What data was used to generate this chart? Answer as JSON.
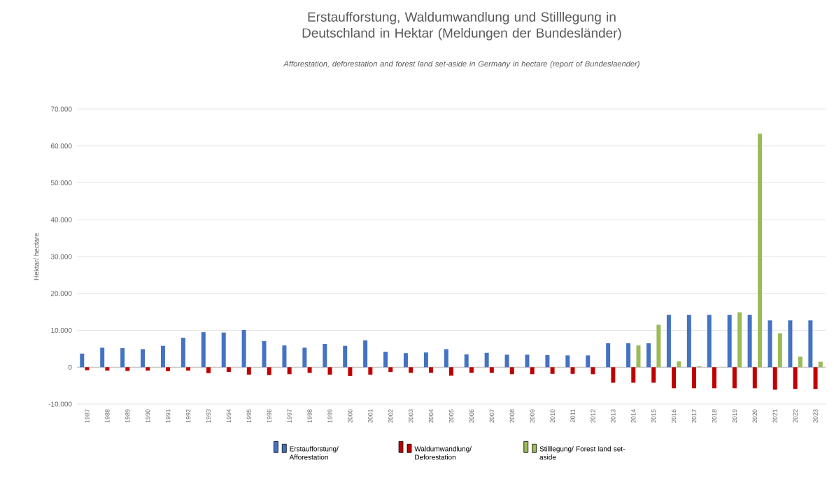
{
  "chart_data": {
    "type": "bar",
    "title": "Erstaufforstung, Waldumwandlung und Stilllegung in Deutschland in Hektar (Meldungen der Bundesländer)",
    "subtitle": "Afforestation, deforestation and forest land set-aside in Germany in hectare (report of Bundeslaender)",
    "ylabel": "Hektar/ hectare",
    "categories": [
      "1987",
      "1988",
      "1989",
      "1990",
      "1991",
      "1992",
      "1993",
      "1994",
      "1995",
      "1996",
      "1997",
      "1998",
      "1999",
      "2000",
      "2001",
      "2002",
      "2003",
      "2004",
      "2005",
      "2006",
      "2007",
      "2008",
      "2009",
      "2010",
      "2011",
      "2012",
      "2013",
      "2014",
      "2015",
      "2016",
      "2017",
      "2018",
      "2019",
      "2020",
      "2021",
      "2022",
      "2023"
    ],
    "series": [
      {
        "name": "Erstaufforstung/ Afforestation",
        "color": "#4472c4",
        "values": [
          3700,
          5300,
          5200,
          4900,
          5800,
          8000,
          9500,
          9400,
          10100,
          7100,
          5900,
          5300,
          6300,
          5800,
          7300,
          4200,
          3800,
          4000,
          4900,
          3500,
          3900,
          3400,
          3400,
          3300,
          3200,
          3200,
          6500,
          6500,
          6500,
          14200,
          14200,
          14200,
          14200,
          14200,
          12700,
          12700,
          12700
        ]
      },
      {
        "name": "Waldumwandlung/ Deforestation",
        "color": "#c00000",
        "values": [
          -800,
          -900,
          -1000,
          -900,
          -1100,
          -900,
          -1600,
          -1300,
          -2000,
          -2100,
          -1900,
          -1500,
          -2000,
          -2400,
          -2000,
          -1300,
          -1500,
          -1500,
          -2300,
          -1500,
          -1500,
          -1900,
          -1900,
          -1800,
          -1800,
          -1900,
          -4200,
          -4200,
          -4200,
          -5700,
          -5700,
          -5700,
          -5700,
          -5700,
          -6100,
          -5900,
          -5900
        ]
      },
      {
        "name": "Stilllegung/ Forest land set-aside",
        "color": "#9bbb59",
        "values": [
          null,
          null,
          null,
          null,
          null,
          null,
          null,
          null,
          null,
          null,
          null,
          null,
          null,
          null,
          null,
          null,
          null,
          null,
          null,
          null,
          null,
          null,
          null,
          null,
          null,
          null,
          null,
          5900,
          11500,
          1600,
          250,
          null,
          14900,
          63300,
          9200,
          2900,
          1500
        ]
      }
    ],
    "ylim": [
      -10000,
      70000
    ],
    "yticks": [
      {
        "value": -10000,
        "label": "-10.000"
      },
      {
        "value": 0,
        "label": "0"
      },
      {
        "value": 10000,
        "label": "10.000"
      },
      {
        "value": 20000,
        "label": "20.000"
      },
      {
        "value": 30000,
        "label": "30.000"
      },
      {
        "value": 40000,
        "label": "40.000"
      },
      {
        "value": 50000,
        "label": "50.000"
      },
      {
        "value": 60000,
        "label": "60.000"
      },
      {
        "value": 70000,
        "label": "70.000"
      }
    ],
    "grid": "y",
    "legend": "bottom"
  }
}
